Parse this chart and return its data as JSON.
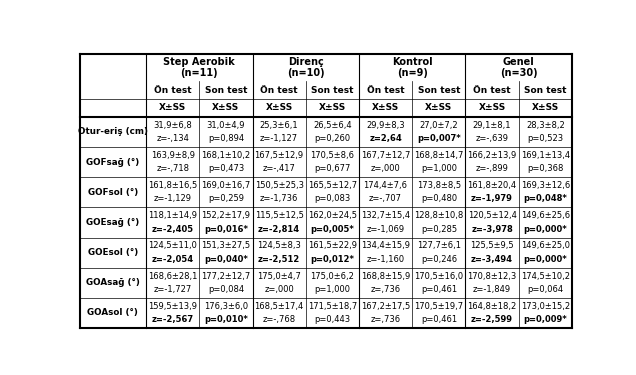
{
  "col_groups": [
    "Step Aerobik\n(n=11)",
    "Direnç\n(n=10)",
    "Kontrol\n(n=9)",
    "Genel\n(n=30)"
  ],
  "rows": [
    {
      "label": "Otur-eriş (cm)",
      "data": [
        [
          "31,9±6,8",
          "31,0±4,9",
          "25,3±6,1",
          "26,5±6,4",
          "29,9±8,3",
          "27,0±7,2",
          "29,1±8,1",
          "28,3±8,2"
        ],
        [
          "z=-,134",
          "p=0,894",
          "z=-1,127",
          "p=0,260",
          "z=2,64",
          "p=0,007*",
          "z=-,639",
          "p=0,523"
        ]
      ],
      "bold": [
        false,
        false,
        false,
        false,
        true,
        true,
        false,
        false
      ]
    },
    {
      "label": "GOFsağ (°)",
      "data": [
        [
          "163,9±8,9",
          "168,1±10,2",
          "167,5±12,9",
          "170,5±8,6",
          "167,7±12,7",
          "168,8±14,7",
          "166,2±13,9",
          "169,1±13,4"
        ],
        [
          "z=-,718",
          "p=0,473",
          "z=-,417",
          "p=0,677",
          "z=,000",
          "p=1,000",
          "z=-,899",
          "p=0,368"
        ]
      ],
      "bold": [
        false,
        false,
        false,
        false,
        false,
        false,
        false,
        false
      ]
    },
    {
      "label": "GOFsol (°)",
      "data": [
        [
          "161,8±16,5",
          "169,0±16,7",
          "150,5±25,3",
          "165,5±12,7",
          "174,4±7,6",
          "173,8±8,5",
          "161,8±20,4",
          "169,3±12,6"
        ],
        [
          "z=-1,129",
          "p=0,259",
          "z=-1,736",
          "p=0,083",
          "z=-,707",
          "p=0,480",
          "z=-1,979",
          "p=0,048*"
        ]
      ],
      "bold": [
        false,
        false,
        false,
        false,
        false,
        false,
        true,
        true
      ]
    },
    {
      "label": "GOEsağ (°)",
      "data": [
        [
          "118,1±14,9",
          "152,2±17,9",
          "115,5±12,5",
          "162,0±24,5",
          "132,7±15,4",
          "128,8±10,8",
          "120,5±12,4",
          "149,6±25,6"
        ],
        [
          "z=-2,405",
          "p=0,016*",
          "z=-2,814",
          "p=0,005*",
          "z=-1,069",
          "p=0,285",
          "z=-3,978",
          "p=0,000*"
        ]
      ],
      "bold": [
        true,
        true,
        true,
        true,
        false,
        false,
        true,
        true
      ]
    },
    {
      "label": "GOEsol (°)",
      "data": [
        [
          "124,5±11,0",
          "151,3±27,5",
          "124,5±8,3",
          "161,5±22,9",
          "134,4±15,9",
          "127,7±6,1",
          "125,5±9,5",
          "149,6±25,0"
        ],
        [
          "z=-2,054",
          "p=0,040*",
          "z=-2,512",
          "p=0,012*",
          "z=-1,160",
          "p=0,246",
          "z=-3,494",
          "p=0,000*"
        ]
      ],
      "bold": [
        true,
        true,
        true,
        true,
        false,
        false,
        true,
        true
      ]
    },
    {
      "label": "GOAsağ (°)",
      "data": [
        [
          "168,6±28,1",
          "177,2±12,7",
          "175,0±4,7",
          "175,0±6,2",
          "168,8±15,9",
          "170,5±16,0",
          "170,8±12,3",
          "174,5±10,2"
        ],
        [
          "z=-1,727",
          "p=0,084",
          "z=,000",
          "p=1,000",
          "z=,736",
          "p=0,461",
          "z=-1,849",
          "p=0,064"
        ]
      ],
      "bold": [
        false,
        false,
        false,
        false,
        false,
        false,
        false,
        false
      ]
    },
    {
      "label": "GOAsol (°)",
      "data": [
        [
          "159,5±13,9",
          "176,3±6,0",
          "168,5±17,4",
          "171,5±18,7",
          "167,2±17,5",
          "170,5±19,7",
          "164,8±18,2",
          "173,0±15,2"
        ],
        [
          "z=-2,567",
          "p=0,010*",
          "z=-,768",
          "p=0,443",
          "z=,736",
          "p=0,461",
          "z=-2,599",
          "p=0,009*"
        ]
      ],
      "bold": [
        true,
        true,
        false,
        false,
        false,
        false,
        true,
        true
      ]
    }
  ]
}
